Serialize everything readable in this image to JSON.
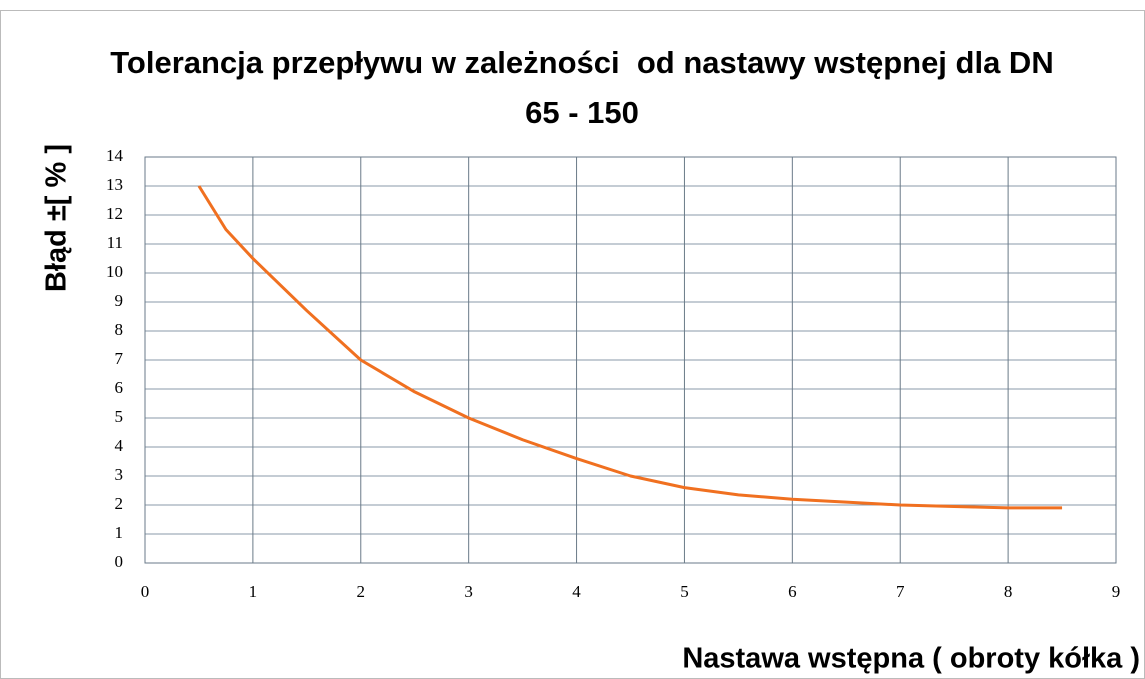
{
  "chart_data": {
    "type": "line",
    "title": "Tolerancja przepływu w zależności  od nastawy wstępnej dla DN 65 - 150",
    "x_label": "Nastawa wstępna ( obroty kółka )",
    "y_label": "Błąd ±[ % ]",
    "x": [
      0.5,
      0.75,
      1,
      1.5,
      2,
      2.5,
      3,
      3.5,
      4,
      4.5,
      5,
      5.5,
      6,
      6.5,
      7,
      7.5,
      8,
      8.5
    ],
    "series": [
      {
        "color": "#f07020",
        "values": [
          13,
          11.5,
          10.5,
          8.7,
          7.0,
          5.9,
          5.0,
          4.25,
          3.6,
          3.0,
          2.6,
          2.35,
          2.2,
          2.1,
          2.0,
          1.95,
          1.9,
          1.9
        ]
      }
    ],
    "xlim": [
      0,
      9
    ],
    "xticks": [
      0,
      1,
      2,
      3,
      4,
      5,
      6,
      7,
      8,
      9
    ],
    "ylim": [
      0,
      14
    ],
    "yticks": [
      0,
      1,
      2,
      3,
      4,
      5,
      6,
      7,
      8,
      9,
      10,
      11,
      12,
      13,
      14
    ],
    "grid": true
  }
}
